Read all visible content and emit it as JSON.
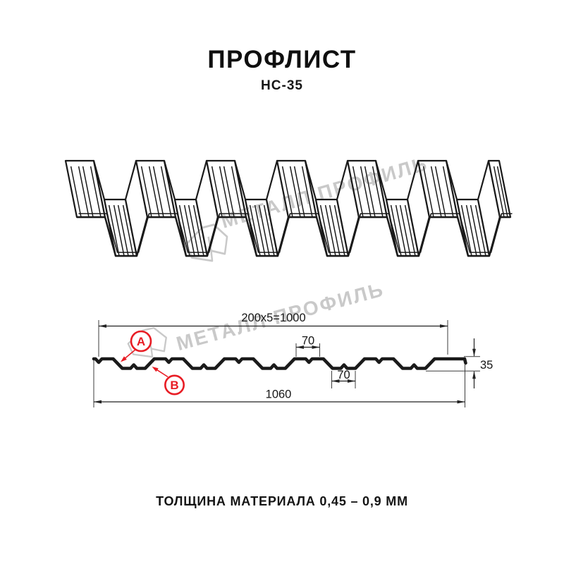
{
  "header": {
    "title": "ПРОФЛИСТ",
    "subtitle": "НС-35"
  },
  "watermark": {
    "brand": "МЕТАЛЛ ПРОФИЛЬ",
    "color": "#c9c9c9"
  },
  "drawing": {
    "dimensions": {
      "module_width": "200x5=1000",
      "crest_width": "70",
      "valley_width": "70",
      "profile_height": "35",
      "overall_width": "1060"
    },
    "callouts": {
      "a": "A",
      "b": "B"
    },
    "colors": {
      "line": "#1a1a1a",
      "dimension": "#222222",
      "callout_red": "#e81c24"
    }
  },
  "footer": {
    "material_note": "ТОЛЩИНА МАТЕРИАЛА 0,45 – 0,9 ММ"
  }
}
